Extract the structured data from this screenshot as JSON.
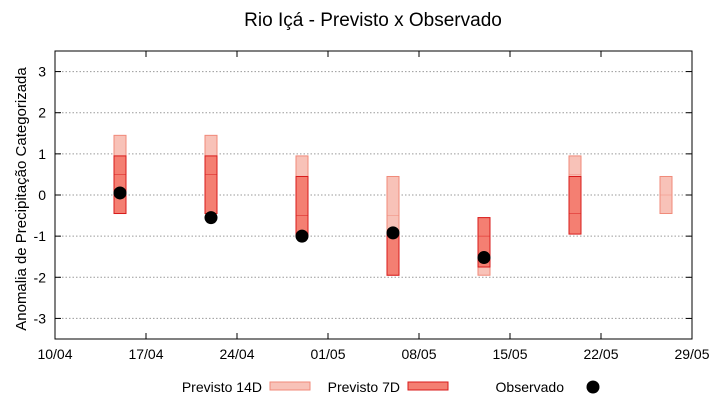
{
  "chart_data": {
    "type": "range-bar",
    "title": "Rio Içá - Previsto x Observado",
    "xlabel": "",
    "ylabel": "Anomalia de Precipitação Categorizada",
    "xlim": [
      "2024-04-10",
      "2024-05-29"
    ],
    "ylim": [
      -3.5,
      3.5
    ],
    "x_ticks": [
      "10/04",
      "17/04",
      "24/04",
      "01/05",
      "08/05",
      "15/05",
      "22/05",
      "29/05"
    ],
    "y_ticks": [
      -3,
      -2,
      -1,
      0,
      1,
      2,
      3
    ],
    "grid": true,
    "legend_position": "bottom",
    "series": [
      {
        "name": "Previsto 14D",
        "color": "#f8c2b8",
        "stroke": "#f08a7a",
        "points": [
          {
            "x": "2024-04-15",
            "low": -0.45,
            "mid": 0.5,
            "high": 1.45
          },
          {
            "x": "2024-04-22",
            "low": -0.45,
            "mid": 0.5,
            "high": 1.45
          },
          {
            "x": "2024-04-29",
            "low": -1.0,
            "mid": 0.0,
            "high": 0.95
          },
          {
            "x": "2024-05-06",
            "low": -1.95,
            "mid": -0.5,
            "high": 0.45
          },
          {
            "x": "2024-05-13",
            "low": -1.95,
            "mid": -1.5,
            "high": -0.55
          },
          {
            "x": "2024-05-20",
            "low": -0.45,
            "mid": 0.5,
            "high": 0.95
          },
          {
            "x": "2024-05-27",
            "low": -0.45,
            "mid": 0.0,
            "high": 0.45
          }
        ]
      },
      {
        "name": "Previsto 7D",
        "color": "#f47f72",
        "stroke": "#d81b1b",
        "points": [
          {
            "x": "2024-04-15",
            "low": -0.45,
            "mid": 0.5,
            "high": 0.95
          },
          {
            "x": "2024-04-22",
            "low": -0.45,
            "mid": 0.5,
            "high": 0.95
          },
          {
            "x": "2024-04-29",
            "low": -1.0,
            "mid": -0.5,
            "high": 0.45
          },
          {
            "x": "2024-05-06",
            "low": -1.95,
            "mid": -1.0,
            "high": -0.95
          },
          {
            "x": "2024-05-13",
            "low": -1.75,
            "mid": -1.0,
            "high": -0.55
          },
          {
            "x": "2024-05-20",
            "low": -0.95,
            "mid": -0.45,
            "high": 0.45
          }
        ]
      },
      {
        "name": "Observado",
        "color": "#000000",
        "points": [
          {
            "x": "2024-04-15",
            "y": 0.05
          },
          {
            "x": "2024-04-22",
            "y": -0.55
          },
          {
            "x": "2024-04-29",
            "y": -1.0
          },
          {
            "x": "2024-05-06",
            "y": -0.92
          },
          {
            "x": "2024-05-13",
            "y": -1.52
          }
        ]
      }
    ]
  }
}
